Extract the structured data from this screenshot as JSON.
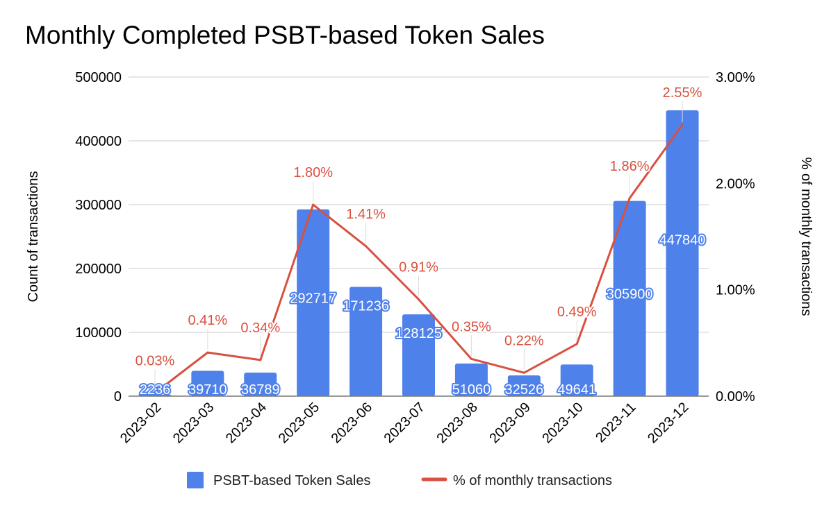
{
  "chart_data": {
    "type": "bar",
    "title": "Monthly Completed PSBT-based Token Sales",
    "xlabel": "",
    "ylabel": "Count of transactions",
    "y2label": "% of monthly transactions",
    "ylim": [
      0,
      500000
    ],
    "y2lim": [
      0,
      3.0
    ],
    "yticks": [
      "0",
      "100000",
      "200000",
      "300000",
      "400000",
      "500000"
    ],
    "y2ticks": [
      "0.00%",
      "1.00%",
      "2.00%",
      "3.00%"
    ],
    "categories": [
      "2023-02",
      "2023-03",
      "2023-04",
      "2023-05",
      "2023-06",
      "2023-07",
      "2023-08",
      "2023-09",
      "2023-10",
      "2023-11",
      "2023-12"
    ],
    "grid": true,
    "legend_position": "bottom",
    "series": [
      {
        "name": "PSBT-based Token Sales",
        "type": "bar",
        "axis": "left",
        "color": "#4f81ea",
        "values": [
          2236,
          39710,
          36789,
          292717,
          171236,
          128125,
          51060,
          32526,
          49641,
          305900,
          447840
        ],
        "labels": [
          "2236",
          "39710",
          "36789",
          "292717",
          "171236",
          "128125",
          "51060",
          "32526",
          "49641",
          "305900",
          "447840"
        ]
      },
      {
        "name": "% of monthly transactions",
        "type": "line",
        "axis": "right",
        "color": "#d9503f",
        "values": [
          0.03,
          0.41,
          0.34,
          1.8,
          1.41,
          0.91,
          0.35,
          0.22,
          0.49,
          1.86,
          2.55
        ],
        "labels": [
          "0.03%",
          "0.41%",
          "0.34%",
          "1.80%",
          "1.41%",
          "0.91%",
          "0.35%",
          "0.22%",
          "0.49%",
          "1.86%",
          "2.55%"
        ]
      }
    ]
  }
}
